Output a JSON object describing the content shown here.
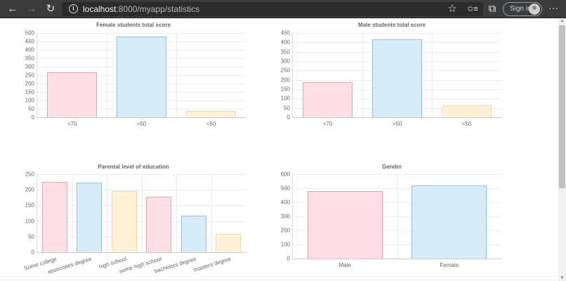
{
  "browser": {
    "url_host": "localhost",
    "url_rest": ":8000/myapp/statistics",
    "sign_in_label": "Sign in",
    "icons": {
      "back": "←",
      "forward": "→",
      "refresh": "↻",
      "info": "i",
      "favorite": "☆",
      "favorites": "✩≡",
      "collections": "⧉",
      "more": "···"
    }
  },
  "chart_data": [
    {
      "type": "bar",
      "title": "Female students total score",
      "categories": [
        ">70",
        ">50",
        "<50"
      ],
      "values": [
        265,
        478,
        36
      ],
      "ylim": [
        0,
        500
      ],
      "yticks": [
        0,
        50,
        100,
        150,
        200,
        250,
        300,
        350,
        400,
        450,
        500
      ],
      "xlabel": "",
      "ylabel": "",
      "grid": true,
      "legend": "none",
      "colors": [
        "#ffdfe6",
        "#d8ebf8",
        "#fff2d6"
      ]
    },
    {
      "type": "bar",
      "title": "Male students total score",
      "categories": [
        ">70",
        ">50",
        "<50"
      ],
      "values": [
        188,
        415,
        62
      ],
      "ylim": [
        0,
        450
      ],
      "yticks": [
        0,
        50,
        100,
        150,
        200,
        250,
        300,
        350,
        400,
        450
      ],
      "xlabel": "",
      "ylabel": "",
      "grid": true,
      "legend": "none",
      "colors": [
        "#ffdfe6",
        "#d8ebf8",
        "#fff2d6"
      ]
    },
    {
      "type": "bar",
      "title": "Parental level of education",
      "categories": [
        "Some college",
        "associates degree",
        "high school",
        "some high school",
        "bachelors degree",
        "masters degree"
      ],
      "values": [
        226,
        222,
        196,
        179,
        118,
        59
      ],
      "ylim": [
        0,
        250
      ],
      "yticks": [
        0,
        50,
        100,
        150,
        200,
        250
      ],
      "xlabel": "",
      "ylabel": "",
      "grid": true,
      "legend": "none",
      "colors": [
        "#ffdfe6",
        "#d8ebf8",
        "#fff2d6",
        "#ffdfe6",
        "#d8ebf8",
        "#fff2d6"
      ]
    },
    {
      "type": "bar",
      "title": "Gender",
      "categories": [
        "Male",
        "Female"
      ],
      "values": [
        482,
        518
      ],
      "ylim": [
        0,
        600
      ],
      "yticks": [
        0,
        100,
        200,
        300,
        400,
        500,
        600
      ],
      "xlabel": "",
      "ylabel": "",
      "grid": true,
      "legend": "none",
      "colors": [
        "#ffdfe6",
        "#d8ebf8"
      ]
    }
  ]
}
